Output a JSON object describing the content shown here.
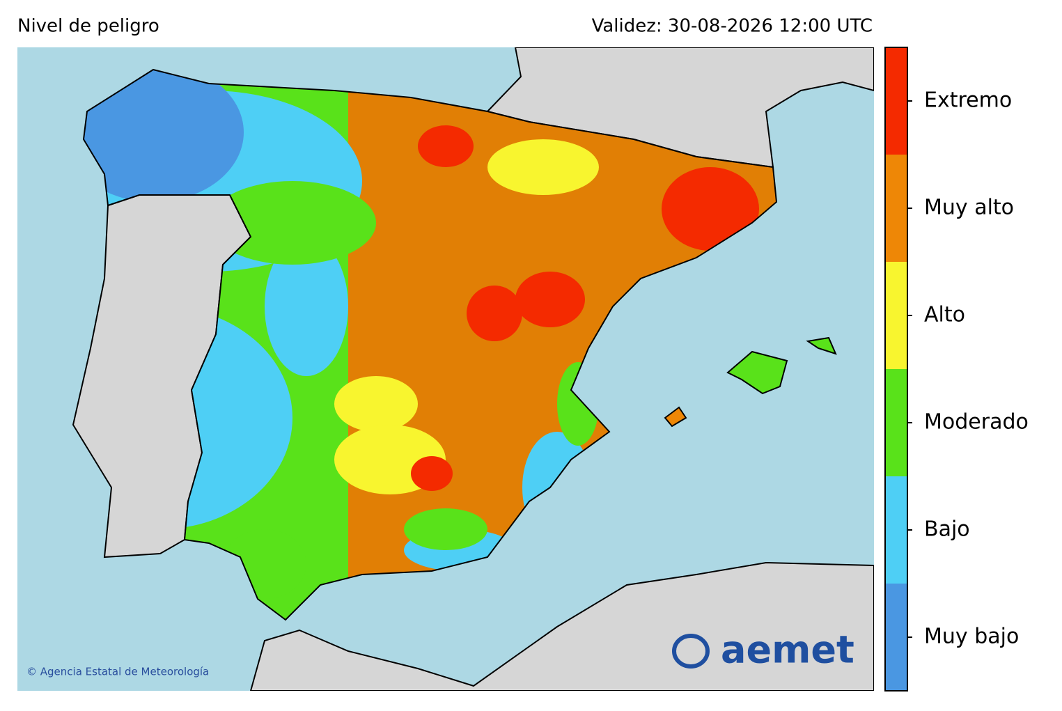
{
  "header": {
    "title": "Nivel de peligro",
    "validity": "Validez: 30-08-2026 12:00 UTC"
  },
  "legend": {
    "levels": [
      {
        "label": "Muy bajo",
        "color": "#4a97e2"
      },
      {
        "label": "Bajo",
        "color": "#4ecff5"
      },
      {
        "label": "Moderado",
        "color": "#59e21a"
      },
      {
        "label": "Alto",
        "color": "#f8f52f"
      },
      {
        "label": "Muy alto",
        "color": "#ee8706"
      },
      {
        "label": "Extremo",
        "color": "#f42a00"
      }
    ]
  },
  "credit": "© Agencia Estatal de Meteorología",
  "logo": "aemet"
}
